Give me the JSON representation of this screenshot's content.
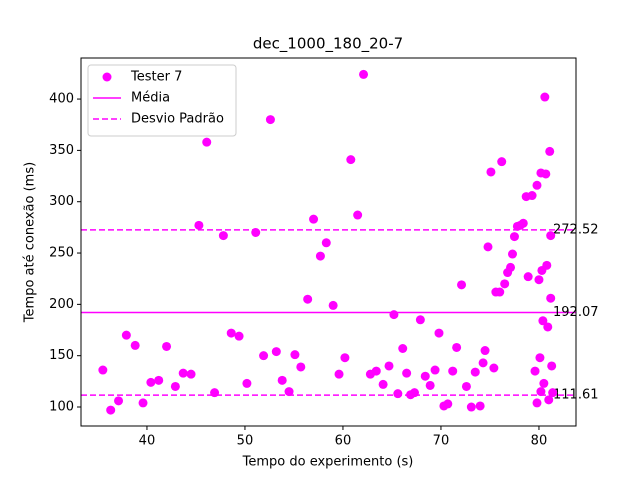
{
  "chart_data": {
    "type": "scatter",
    "title": "dec_1000_180_20-7",
    "x_label": "Tempo do experimento (s)",
    "y_label": "Tempo até conexão (ms)",
    "xlim": [
      33.27,
      83.78
    ],
    "ylim": [
      81.5,
      440
    ],
    "xticks": [
      40,
      50,
      60,
      70,
      80
    ],
    "yticks": [
      100,
      150,
      200,
      250,
      300,
      350,
      400
    ],
    "legend": "upper left",
    "series": [
      {
        "name": "Tester 7",
        "color": "#ff00ff",
        "x": [
          35.5,
          36.3,
          37.1,
          37.9,
          38.8,
          39.6,
          40.4,
          41.2,
          42.0,
          42.9,
          43.7,
          44.5,
          45.3,
          46.1,
          46.9,
          47.8,
          48.6,
          49.4,
          50.2,
          51.1,
          51.9,
          52.6,
          53.2,
          53.8,
          54.5,
          55.1,
          55.7,
          56.4,
          57.0,
          57.7,
          58.3,
          59.0,
          59.6,
          60.2,
          60.8,
          61.5,
          62.1,
          62.8,
          63.4,
          64.1,
          64.7,
          65.2,
          65.6,
          66.1,
          66.5,
          66.9,
          67.3,
          67.9,
          68.4,
          68.9,
          69.4,
          69.8,
          70.3,
          70.7,
          71.2,
          71.6,
          72.1,
          72.6,
          73.1,
          73.5,
          74.0,
          74.3,
          74.5,
          74.8,
          75.1,
          75.4,
          75.6,
          76.0,
          76.2,
          76.5,
          76.8,
          77.1,
          77.3,
          77.5,
          77.8,
          78.1,
          78.4,
          78.7,
          78.9,
          79.3,
          79.6,
          79.8,
          79.8,
          80.0,
          80.1,
          80.2,
          80.2,
          80.3,
          80.4,
          80.5,
          80.6,
          80.7,
          80.8,
          80.9,
          81.0,
          81.1,
          81.2,
          81.2,
          81.3,
          81.4
        ],
        "values": [
          136,
          97,
          106,
          170,
          160,
          104,
          124,
          126,
          159,
          120,
          133,
          132,
          277,
          358,
          114,
          267,
          172,
          169,
          123,
          270,
          150,
          380,
          154,
          126,
          115,
          151,
          139,
          205,
          283,
          247,
          260,
          199,
          132,
          148,
          341,
          287,
          424,
          132,
          135,
          122,
          140,
          190,
          113,
          157,
          133,
          112,
          114,
          185,
          130,
          121,
          136,
          172,
          101,
          103,
          135,
          158,
          219,
          120,
          100,
          134,
          101,
          143,
          155,
          256,
          329,
          138,
          212,
          212,
          339,
          220,
          231,
          236,
          249,
          266,
          276,
          277,
          279,
          305,
          227,
          306,
          135,
          316,
          104,
          224,
          148,
          328,
          115,
          233,
          184,
          123,
          402,
          327,
          238,
          178,
          107,
          349,
          267,
          206,
          140,
          114
        ]
      }
    ],
    "reference_lines": [
      {
        "name": "Média",
        "color": "#ff00ff",
        "style": "solid",
        "values": [
          192.07
        ]
      },
      {
        "name": "Desvio Padrão",
        "color": "#ff00ff",
        "style": "dashed",
        "values": [
          272.52,
          111.61
        ]
      }
    ]
  }
}
